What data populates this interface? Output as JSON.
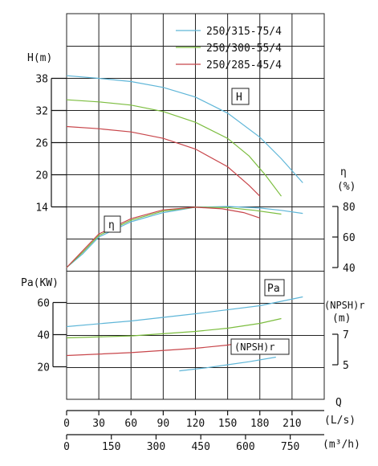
{
  "chart_data": {
    "type": "line",
    "legend": [
      {
        "name": "250/315-75/4",
        "color": "#5fb6d8"
      },
      {
        "name": "250/300-55/4",
        "color": "#7cbd3f"
      },
      {
        "name": "250/285-45/4",
        "color": "#c8464b"
      }
    ],
    "legend_placement": "top-right",
    "grid": true,
    "x_axis": {
      "label": "Q",
      "unit": "(L/s)",
      "range": [
        0,
        240
      ],
      "ticks": [
        "0",
        "30",
        "60",
        "90",
        "120",
        "150",
        "180",
        "210"
      ],
      "ticks_m3h": [
        "0",
        "150",
        "300",
        "450",
        "600",
        "750"
      ],
      "unit_m3h": "(m³/h)"
    },
    "y_axes": {
      "H": {
        "label": "H(m)",
        "ticks": [
          "38",
          "32",
          "26",
          "20",
          "14"
        ],
        "box": "H"
      },
      "Pa": {
        "label": "Pa(KW)",
        "ticks": [
          "60",
          "40",
          "20"
        ],
        "box": "Pa"
      },
      "eta": {
        "label": "η",
        "unit": "(%)",
        "ticks": [
          "80",
          "60",
          "40"
        ],
        "box": "η"
      },
      "npsh": {
        "label": "(NPSH)r",
        "unit": "(m)",
        "ticks": [
          "7",
          "5"
        ],
        "box": "(NPSH)r"
      }
    },
    "series": [
      {
        "name": "250/315-75/4",
        "color": "#5fb6d8",
        "curves": {
          "H": [
            [
              0,
              38.5
            ],
            [
              30,
              38
            ],
            [
              60,
              37.4
            ],
            [
              90,
              36.3
            ],
            [
              120,
              34.5
            ],
            [
              150,
              31.5
            ],
            [
              180,
              27
            ],
            [
              200,
              23
            ],
            [
              220,
              18.5
            ]
          ],
          "eta": [
            [
              0,
              40
            ],
            [
              15,
              49
            ],
            [
              30,
              60
            ],
            [
              60,
              70
            ],
            [
              90,
              76
            ],
            [
              120,
              79.5
            ],
            [
              150,
              80
            ],
            [
              180,
              79
            ],
            [
              200,
              77.5
            ],
            [
              220,
              75.5
            ]
          ],
          "Pa": [
            [
              0,
              45
            ],
            [
              60,
              48.5
            ],
            [
              120,
              53
            ],
            [
              180,
              58
            ],
            [
              220,
              63.5
            ]
          ],
          "npsh": [
            [
              105,
              4.6
            ],
            [
              130,
              4.8
            ],
            [
              150,
              5.0
            ],
            [
              170,
              5.2
            ],
            [
              195,
              5.5
            ]
          ]
        }
      },
      {
        "name": "250/300-55/4",
        "color": "#7cbd3f",
        "curves": {
          "H": [
            [
              0,
              34
            ],
            [
              30,
              33.6
            ],
            [
              60,
              33
            ],
            [
              90,
              31.8
            ],
            [
              120,
              29.8
            ],
            [
              150,
              26.8
            ],
            [
              170,
              23.5
            ],
            [
              185,
              20
            ],
            [
              200,
              16
            ]
          ],
          "eta": [
            [
              0,
              40
            ],
            [
              15,
              50
            ],
            [
              30,
              61
            ],
            [
              60,
              71
            ],
            [
              90,
              77
            ],
            [
              120,
              79.5
            ],
            [
              150,
              79.3
            ],
            [
              175,
              77.5
            ],
            [
              200,
              75
            ]
          ],
          "Pa": [
            [
              0,
              38
            ],
            [
              60,
              39.2
            ],
            [
              120,
              42
            ],
            [
              150,
              44
            ],
            [
              180,
              47
            ],
            [
              200,
              50
            ]
          ]
        }
      },
      {
        "name": "250/285-45/4",
        "color": "#c8464b",
        "curves": {
          "H": [
            [
              0,
              29
            ],
            [
              30,
              28.6
            ],
            [
              60,
              28
            ],
            [
              90,
              26.8
            ],
            [
              120,
              24.8
            ],
            [
              150,
              21.5
            ],
            [
              170,
              18
            ],
            [
              180,
              16
            ]
          ],
          "eta": [
            [
              0,
              40
            ],
            [
              15,
              51
            ],
            [
              30,
              62
            ],
            [
              60,
              72
            ],
            [
              90,
              77.8
            ],
            [
              120,
              79.5
            ],
            [
              145,
              78.5
            ],
            [
              165,
              76
            ],
            [
              180,
              72.5
            ]
          ],
          "Pa": [
            [
              0,
              27
            ],
            [
              60,
              28.8
            ],
            [
              120,
              31.5
            ],
            [
              150,
              33.5
            ],
            [
              180,
              37
            ]
          ]
        }
      }
    ]
  }
}
